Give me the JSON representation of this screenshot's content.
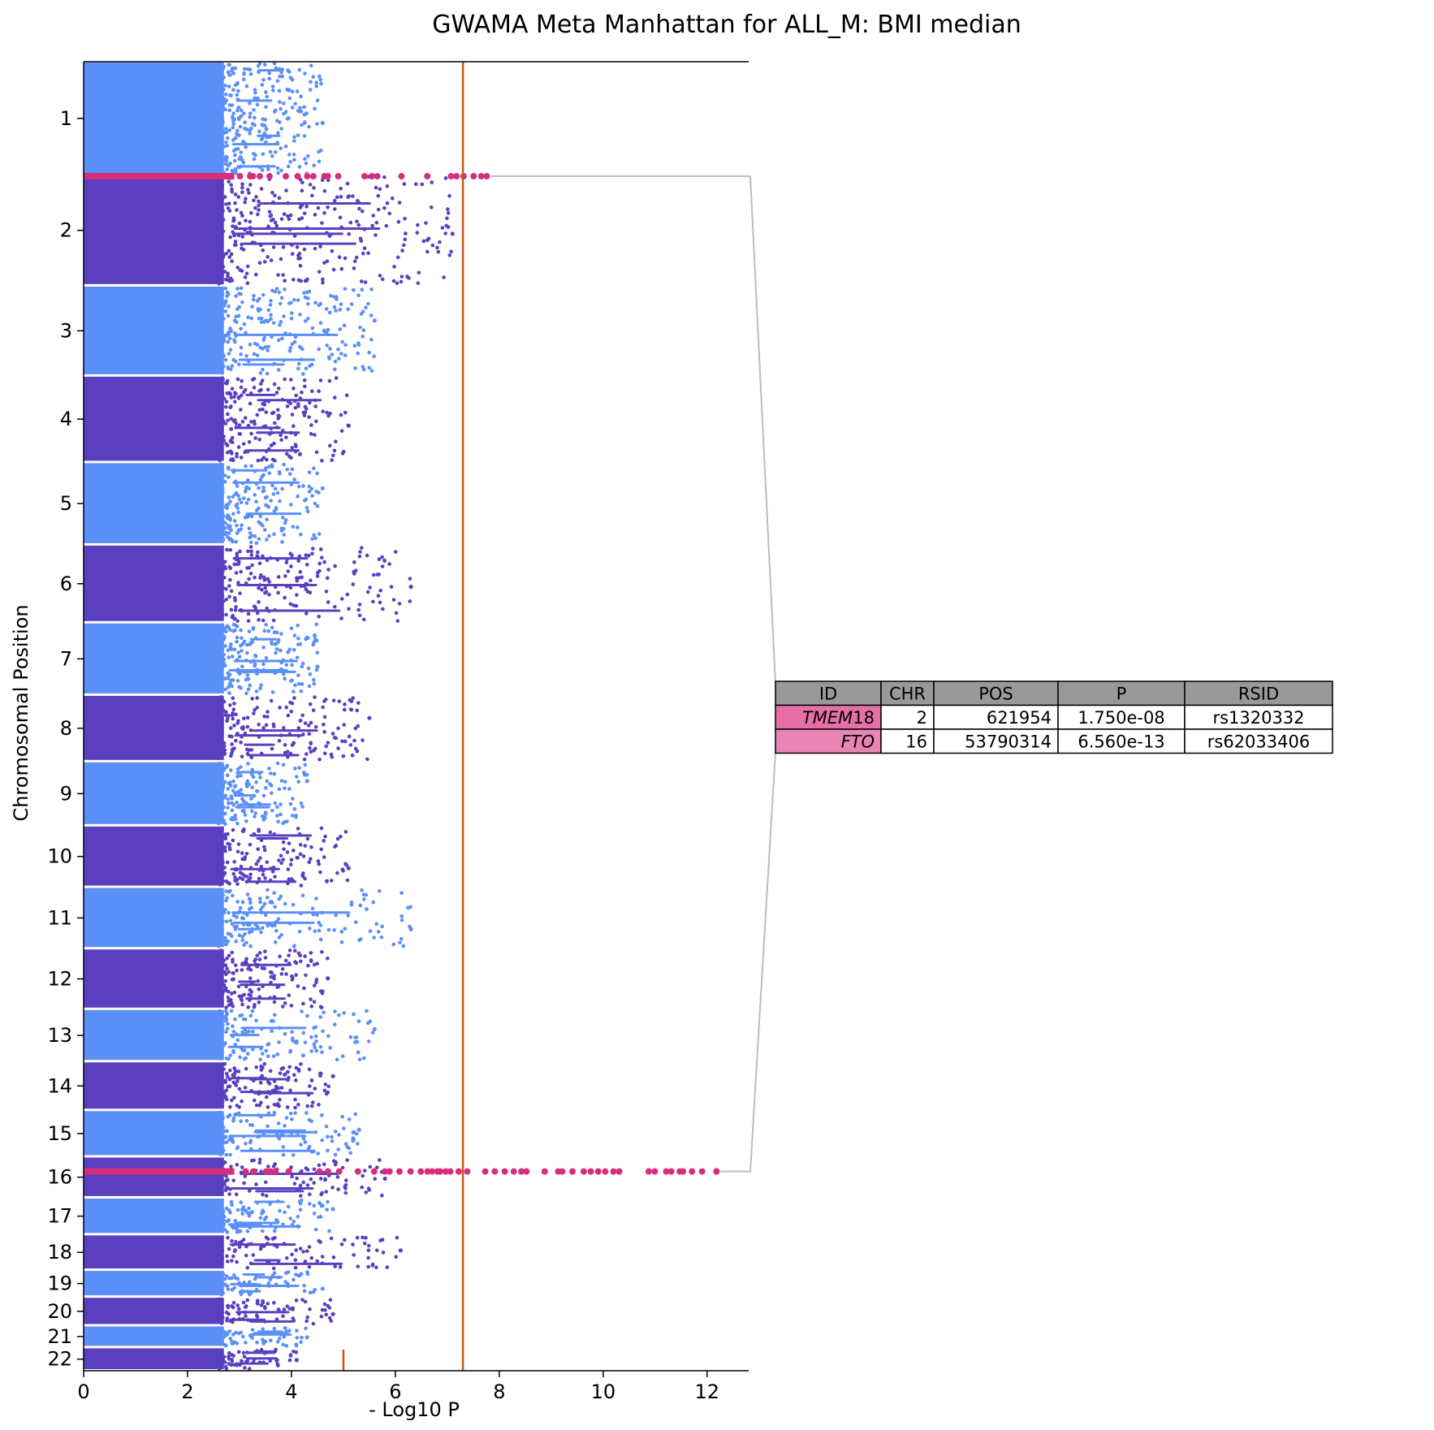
{
  "chart_data": {
    "type": "scatter",
    "title": "GWAMA Meta Manhattan for ALL_M: BMI median",
    "xlabel": "- Log10 P",
    "ylabel": "Chromosomal Position",
    "xlim": [
      0,
      12.8
    ],
    "x_ticks": [
      0,
      2,
      4,
      6,
      8,
      10,
      12
    ],
    "x_tick_labels": [
      "0",
      "2",
      "4",
      "6",
      "8",
      "10",
      "12"
    ],
    "chromosomes": [
      {
        "chr": "1",
        "length": 249
      },
      {
        "chr": "2",
        "length": 243
      },
      {
        "chr": "3",
        "length": 198
      },
      {
        "chr": "4",
        "length": 190
      },
      {
        "chr": "5",
        "length": 181
      },
      {
        "chr": "6",
        "length": 171
      },
      {
        "chr": "7",
        "length": 159
      },
      {
        "chr": "8",
        "length": 146
      },
      {
        "chr": "9",
        "length": 141
      },
      {
        "chr": "10",
        "length": 135
      },
      {
        "chr": "11",
        "length": 135
      },
      {
        "chr": "12",
        "length": 133
      },
      {
        "chr": "13",
        "length": 115
      },
      {
        "chr": "14",
        "length": 107
      },
      {
        "chr": "15",
        "length": 102
      },
      {
        "chr": "16",
        "length": 90
      },
      {
        "chr": "17",
        "length": 81
      },
      {
        "chr": "18",
        "length": 78
      },
      {
        "chr": "19",
        "length": 59
      },
      {
        "chr": "20",
        "length": 63
      },
      {
        "chr": "21",
        "length": 48
      },
      {
        "chr": "22",
        "length": 51
      }
    ],
    "series": [
      {
        "color": "#5b8ff9"
      },
      {
        "color": "#5a40c0"
      },
      {
        "color": "#d62d7c"
      }
    ],
    "thresholds": [
      {
        "x": 7.3,
        "color": "#c8551a"
      },
      {
        "x": 5.0,
        "color": "#c8551a"
      }
    ],
    "highlighted_loci": [
      {
        "id": "TMEM18",
        "chr": 2,
        "pos": 621954,
        "max_log10p": 7.76
      },
      {
        "id": "FTO",
        "chr": 16,
        "pos": 53790314,
        "max_log10p": 12.18
      }
    ],
    "chromosome_peaks": [
      4.6,
      7.1,
      5.6,
      5.1,
      4.6,
      6.3,
      4.5,
      5.5,
      4.3,
      5.1,
      6.3,
      4.7,
      5.6,
      4.8,
      5.3,
      5.8,
      4.8,
      6.1,
      4.6,
      4.8,
      4.3,
      4.1
    ],
    "grid": false,
    "legend": "none"
  },
  "table": {
    "headers": [
      "ID",
      "CHR",
      "POS",
      "P",
      "RSID"
    ],
    "rows": [
      {
        "id": "TMEM18",
        "chr": "2",
        "pos": "621954",
        "p": "1.750e-08",
        "rsid": "rs1320332"
      },
      {
        "id": "FTO",
        "chr": "16",
        "pos": "53790314",
        "p": "6.560e-13",
        "rsid": "rs62033406"
      }
    ],
    "header_color": "#999999",
    "id_cell_colors": [
      "#e66fa8",
      "#ea84b4"
    ],
    "connector_color": "#bdbdbd"
  }
}
